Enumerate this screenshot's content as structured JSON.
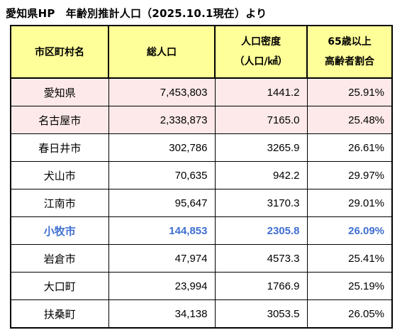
{
  "title": "愛知県HP　年齢別推計人口（2025.10.1現在）より",
  "headers": {
    "municipality": "市区町村名",
    "population": "総人口",
    "density_line1": "人口密度",
    "density_line2": "（人口/㎢）",
    "elderly_line1": "65歳以上",
    "elderly_line2": "高齢者割合"
  },
  "rows": [
    {
      "name": "愛知県",
      "population": "7,453,803",
      "density": "1441.2",
      "elderly": "25.91%",
      "style": "pink"
    },
    {
      "name": "名古屋市",
      "population": "2,338,873",
      "density": "7165.0",
      "elderly": "25.48%",
      "style": "pink"
    },
    {
      "name": "春日井市",
      "population": "302,786",
      "density": "3265.9",
      "elderly": "26.61%",
      "style": "normal"
    },
    {
      "name": "犬山市",
      "population": "70,635",
      "density": "942.2",
      "elderly": "29.97%",
      "style": "normal"
    },
    {
      "name": "江南市",
      "population": "95,647",
      "density": "3170.3",
      "elderly": "29.01%",
      "style": "normal"
    },
    {
      "name": "小牧市",
      "population": "144,853",
      "density": "2305.8",
      "elderly": "26.09%",
      "style": "highlight"
    },
    {
      "name": "岩倉市",
      "population": "47,974",
      "density": "4573.3",
      "elderly": "25.41%",
      "style": "normal"
    },
    {
      "name": "大口町",
      "population": "23,994",
      "density": "1766.9",
      "elderly": "25.19%",
      "style": "normal"
    },
    {
      "name": "扶桑町",
      "population": "34,138",
      "density": "3053.5",
      "elderly": "26.05%",
      "style": "normal"
    }
  ],
  "colors": {
    "header_bg": "#ffff99",
    "pink_row_bg": "#fde9e9",
    "highlight_text": "#3f6fd1"
  }
}
